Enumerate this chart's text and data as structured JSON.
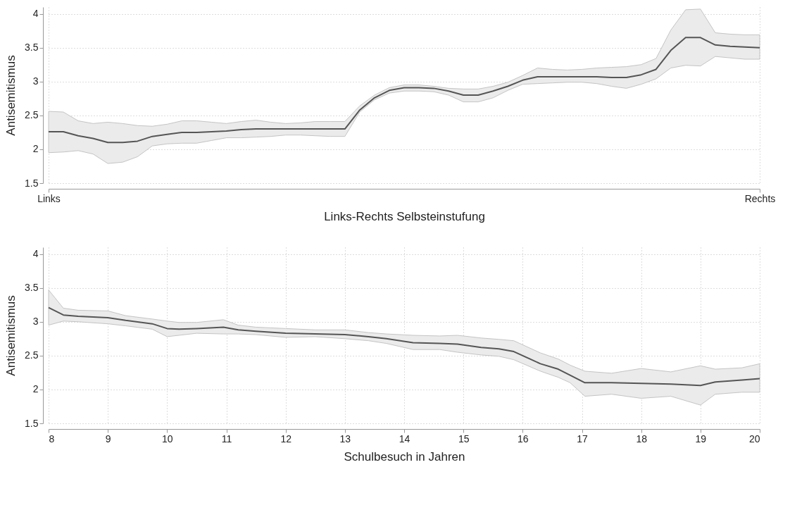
{
  "chart_data": [
    {
      "type": "line",
      "xlabel": "Links-Rechts Selbsteinstufung",
      "ylabel": "Antisemitismus",
      "categories": [
        "Links",
        null,
        null,
        null,
        null,
        null,
        null,
        null,
        null,
        null,
        null,
        null,
        null,
        null,
        null,
        null,
        null,
        null,
        null,
        null,
        null,
        null,
        null,
        null,
        null,
        null,
        null,
        null,
        null,
        null,
        null,
        null,
        null,
        null,
        null,
        null,
        null,
        null,
        null,
        null,
        null,
        null,
        null,
        null,
        null,
        null,
        null,
        null,
        "Rechts"
      ],
      "series": [
        {
          "color": "#555555",
          "values": [
            2.26,
            2.26,
            2.2,
            2.16,
            2.1,
            2.1,
            2.12,
            2.19,
            2.22,
            2.25,
            2.25,
            2.26,
            2.27,
            2.29,
            2.3,
            2.3,
            2.3,
            2.3,
            2.3,
            2.3,
            2.3,
            2.58,
            2.76,
            2.87,
            2.91,
            2.91,
            2.9,
            2.86,
            2.8,
            2.8,
            2.86,
            2.93,
            3.02,
            3.07,
            3.07,
            3.07,
            3.07,
            3.07,
            3.06,
            3.06,
            3.1,
            3.18,
            3.46,
            3.65,
            3.65,
            3.54,
            3.52,
            3.51,
            3.5
          ],
          "lower": [
            1.95,
            1.96,
            1.98,
            1.93,
            1.79,
            1.81,
            1.89,
            2.05,
            2.08,
            2.09,
            2.09,
            2.13,
            2.17,
            2.17,
            2.18,
            2.19,
            2.21,
            2.21,
            2.2,
            2.19,
            2.19,
            2.55,
            2.73,
            2.83,
            2.86,
            2.86,
            2.85,
            2.8,
            2.7,
            2.7,
            2.76,
            2.87,
            2.96,
            2.97,
            2.98,
            2.99,
            2.99,
            2.97,
            2.93,
            2.9,
            2.96,
            3.04,
            3.2,
            3.24,
            3.23,
            3.37,
            3.35,
            3.33,
            3.33
          ],
          "upper": [
            2.56,
            2.55,
            2.42,
            2.38,
            2.4,
            2.38,
            2.35,
            2.34,
            2.37,
            2.42,
            2.42,
            2.4,
            2.38,
            2.41,
            2.43,
            2.4,
            2.38,
            2.39,
            2.41,
            2.41,
            2.41,
            2.64,
            2.8,
            2.91,
            2.95,
            2.95,
            2.93,
            2.9,
            2.89,
            2.89,
            2.93,
            2.99,
            3.09,
            3.2,
            3.18,
            3.17,
            3.18,
            3.2,
            3.21,
            3.22,
            3.25,
            3.34,
            3.76,
            4.06,
            4.07,
            3.72,
            3.7,
            3.69,
            3.69
          ]
        }
      ],
      "ylim": [
        1.5,
        4.1
      ],
      "yticks": [
        1.5,
        2,
        2.5,
        3,
        3.5,
        4
      ],
      "grid": true,
      "line_style": "solid"
    },
    {
      "type": "line",
      "xlabel": "Schulbesuch in Jahren",
      "ylabel": "Antisemitismus",
      "x": [
        8,
        8.25,
        8.5,
        9,
        9.3,
        9.75,
        10,
        10.2,
        10.5,
        10.95,
        11.2,
        11.5,
        12,
        12.5,
        13,
        13.4,
        13.7,
        14.15,
        14.6,
        14.9,
        15.3,
        15.6,
        15.85,
        16.3,
        16.6,
        16.8,
        17.05,
        17.5,
        18,
        18.5,
        19,
        19.25,
        19.7,
        20
      ],
      "series": [
        {
          "color": "#555555",
          "values": [
            3.21,
            3.1,
            3.08,
            3.06,
            3.02,
            2.97,
            2.9,
            2.89,
            2.9,
            2.92,
            2.88,
            2.86,
            2.83,
            2.82,
            2.81,
            2.78,
            2.75,
            2.69,
            2.68,
            2.67,
            2.62,
            2.6,
            2.56,
            2.38,
            2.3,
            2.21,
            2.1,
            2.1,
            2.09,
            2.08,
            2.06,
            2.11,
            2.14,
            2.16
          ],
          "lower": [
            2.95,
            3.01,
            3,
            2.97,
            2.94,
            2.89,
            2.78,
            2.8,
            2.83,
            2.82,
            2.82,
            2.81,
            2.77,
            2.78,
            2.75,
            2.72,
            2.68,
            2.59,
            2.59,
            2.55,
            2.51,
            2.49,
            2.44,
            2.27,
            2.18,
            2.1,
            1.9,
            1.93,
            1.87,
            1.9,
            1.77,
            1.93,
            1.96,
            1.96
          ],
          "upper": [
            3.47,
            3.2,
            3.17,
            3.16,
            3.09,
            3.04,
            3.01,
            2.99,
            2.99,
            3.03,
            2.95,
            2.92,
            2.9,
            2.88,
            2.88,
            2.84,
            2.82,
            2.8,
            2.79,
            2.8,
            2.76,
            2.74,
            2.72,
            2.54,
            2.45,
            2.36,
            2.27,
            2.24,
            2.31,
            2.26,
            2.35,
            2.3,
            2.32,
            2.38
          ]
        }
      ],
      "xlim": [
        8,
        20
      ],
      "xticks": [
        8,
        9,
        10,
        11,
        12,
        13,
        14,
        15,
        16,
        17,
        18,
        19,
        20
      ],
      "ylim": [
        1.5,
        4.1
      ],
      "yticks": [
        1.5,
        2,
        2.5,
        3,
        3.5,
        4
      ],
      "grid": true,
      "line_style": "solid"
    }
  ]
}
